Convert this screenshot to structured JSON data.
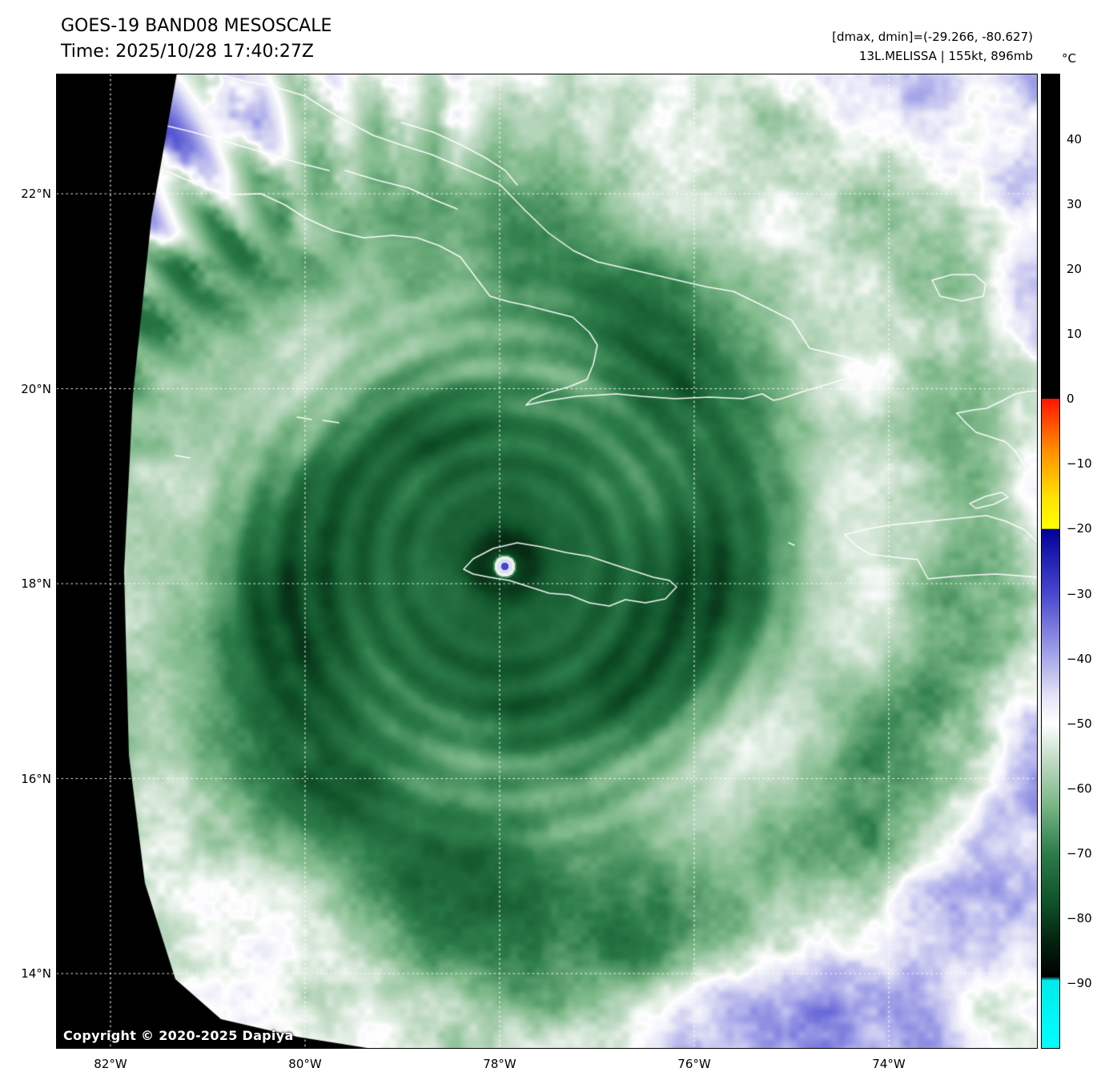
{
  "header": {
    "title": "GOES-19 BAND08 MESOSCALE",
    "time": "Time: 2025/10/28 17:40:27Z",
    "stats": "[dmax, dmin]=(-29.266, -80.627)",
    "storm": "13L.MELISSA | 155kt, 896mb"
  },
  "colorbar": {
    "unit": "°C",
    "ticks": [
      40,
      30,
      20,
      10,
      0,
      -10,
      -20,
      -30,
      -40,
      -50,
      -60,
      -70,
      -80,
      -90
    ],
    "range_top_c": 50,
    "range_bottom_c": -100,
    "stops": [
      [
        50,
        "#000000"
      ],
      [
        0.05,
        "#000000"
      ],
      [
        0,
        "#ff1400"
      ],
      [
        -8,
        "#ff9000"
      ],
      [
        -15,
        "#ffe100"
      ],
      [
        -20,
        "#ffff00"
      ],
      [
        -20.05,
        "#000099"
      ],
      [
        -30,
        "#4747cf"
      ],
      [
        -40,
        "#a9a9ea"
      ],
      [
        -46,
        "#e6e6f7"
      ],
      [
        -50,
        "#ffffff"
      ],
      [
        -56,
        "#bdd9c1"
      ],
      [
        -62,
        "#80ba8b"
      ],
      [
        -70,
        "#2c7c49"
      ],
      [
        -78,
        "#0e4f27"
      ],
      [
        -84,
        "#03200d"
      ],
      [
        -89,
        "#000000"
      ],
      [
        -89.6,
        "#00eaea"
      ],
      [
        -100,
        "#00ffff"
      ]
    ]
  },
  "axes": {
    "lat": [
      {
        "label": "22°N",
        "value": 22
      },
      {
        "label": "20°N",
        "value": 20
      },
      {
        "label": "18°N",
        "value": 18
      },
      {
        "label": "16°N",
        "value": 16
      },
      {
        "label": "14°N",
        "value": 14
      }
    ],
    "lon": [
      {
        "label": "82°W",
        "value": 82
      },
      {
        "label": "80°W",
        "value": 80
      },
      {
        "label": "78°W",
        "value": 78
      },
      {
        "label": "76°W",
        "value": 76
      },
      {
        "label": "74°W",
        "value": 74
      }
    ]
  },
  "map": {
    "copyright": "Copyright © 2020-2025 Dapiya",
    "grid_color": "#ffffff",
    "coastline_color": "#ffffff",
    "offsector_color": "#000000"
  }
}
